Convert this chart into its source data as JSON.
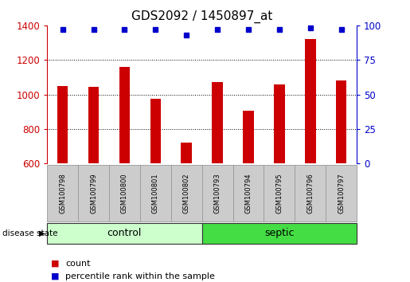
{
  "title": "GDS2092 / 1450897_at",
  "samples": [
    "GSM100798",
    "GSM100799",
    "GSM100800",
    "GSM100801",
    "GSM100802",
    "GSM100793",
    "GSM100794",
    "GSM100795",
    "GSM100796",
    "GSM100797"
  ],
  "counts": [
    1050,
    1045,
    1160,
    975,
    720,
    1070,
    905,
    1060,
    1320,
    1080
  ],
  "percentiles": [
    97,
    97,
    97,
    97,
    93,
    97,
    97,
    97,
    98,
    97
  ],
  "groups": [
    "control",
    "control",
    "control",
    "control",
    "control",
    "septic",
    "septic",
    "septic",
    "septic",
    "septic"
  ],
  "ylim_left": [
    600,
    1400
  ],
  "ylim_right": [
    0,
    100
  ],
  "yticks_left": [
    600,
    800,
    1000,
    1200,
    1400
  ],
  "yticks_right": [
    0,
    25,
    50,
    75,
    100
  ],
  "bar_color": "#cc0000",
  "dot_color": "#0000cc",
  "control_color_light": "#ccffcc",
  "septic_color_dark": "#44dd44",
  "control_label": "control",
  "septic_label": "septic",
  "disease_state_label": "disease state",
  "legend_count_label": "count",
  "legend_pct_label": "percentile rank within the sample",
  "title_fontsize": 11,
  "tick_fontsize": 8.5,
  "sample_fontsize": 6,
  "n_control": 5,
  "n_septic": 5
}
